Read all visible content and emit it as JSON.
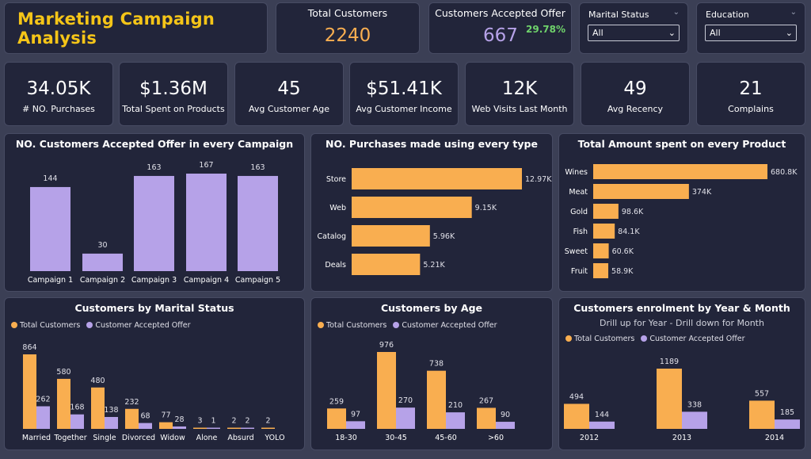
{
  "header": {
    "title": "Marketing Campaign Analysis"
  },
  "kpis_top": {
    "total_customers": {
      "label": "Total Customers",
      "value": "2240"
    },
    "accepted_offer": {
      "label": "Customers Accepted Offer",
      "value": "667",
      "pct": "29.78%"
    }
  },
  "slicers": {
    "marital": {
      "label": "Marital Status",
      "value": "All"
    },
    "education": {
      "label": "Education",
      "value": "All"
    }
  },
  "kpis": [
    {
      "value": "34.05K",
      "label": "# NO. Purchases"
    },
    {
      "value": "$1.36M",
      "label": "Total Spent on Products"
    },
    {
      "value": "45",
      "label": "Avg Customer Age"
    },
    {
      "value": "$51.41K",
      "label": "Avg Customer Income"
    },
    {
      "value": "12K",
      "label": "Web Visits Last Month"
    },
    {
      "value": "49",
      "label": "Avg Recency"
    },
    {
      "value": "21",
      "label": "Complains"
    }
  ],
  "colors": {
    "orange": "#f9ae50",
    "purple": "#b6a2e8",
    "title": "#f5c518",
    "green": "#6fd26b",
    "kpi_orange": "#f9ae50",
    "kpi_purple": "#b6a2e8"
  },
  "legend": {
    "total": "Total Customers",
    "accepted": "Customer Accepted Offer"
  },
  "chart_data": [
    {
      "id": "campaign",
      "type": "bar",
      "title": "NO. Customers Accepted Offer in every Campaign",
      "categories": [
        "Campaign 1",
        "Campaign 2",
        "Campaign 3",
        "Campaign 4",
        "Campaign 5"
      ],
      "values": [
        144,
        30,
        163,
        167,
        163
      ],
      "labels": [
        "144",
        "30",
        "163",
        "167",
        "163"
      ],
      "ylim": [
        0,
        167
      ]
    },
    {
      "id": "purchase_type",
      "type": "bar",
      "orientation": "horizontal",
      "title": "NO. Purchases made using every type",
      "categories": [
        "Store",
        "Web",
        "Catalog",
        "Deals"
      ],
      "values": [
        12970,
        9150,
        5960,
        5210
      ],
      "labels": [
        "12.97K",
        "9.15K",
        "5.96K",
        "5.21K"
      ]
    },
    {
      "id": "product",
      "type": "bar",
      "orientation": "horizontal",
      "title": "Total Amount spent on every Product",
      "categories": [
        "Wines",
        "Meat",
        "Gold",
        "Fish",
        "Sweet",
        "Fruit"
      ],
      "values": [
        680800,
        374000,
        98600,
        84100,
        60600,
        58900
      ],
      "labels": [
        "680.8K",
        "374K",
        "98.6K",
        "84.1K",
        "60.6K",
        "58.9K"
      ]
    },
    {
      "id": "marital",
      "type": "bar",
      "title": "Customers by Marital Status",
      "categories": [
        "Married",
        "Together",
        "Single",
        "Divorced",
        "Widow",
        "Alone",
        "Absurd",
        "YOLO"
      ],
      "series": [
        {
          "name": "Total Customers",
          "values": [
            864,
            580,
            480,
            232,
            77,
            3,
            2,
            2
          ]
        },
        {
          "name": "Customer Accepted Offer",
          "values": [
            262,
            168,
            138,
            68,
            28,
            1,
            2,
            null
          ]
        }
      ]
    },
    {
      "id": "age",
      "type": "bar",
      "title": "Customers by Age",
      "categories": [
        "18-30",
        "30-45",
        "45-60",
        ">60"
      ],
      "series": [
        {
          "name": "Total Customers",
          "values": [
            259,
            976,
            738,
            267
          ]
        },
        {
          "name": "Customer Accepted Offer",
          "values": [
            97,
            270,
            210,
            90
          ]
        }
      ]
    },
    {
      "id": "enrolment",
      "type": "bar",
      "title": "Customers enrolment by Year & Month",
      "subtitle": "Drill up for Year - Drill down for Month",
      "categories": [
        "2012",
        "2013",
        "2014"
      ],
      "series": [
        {
          "name": "Total Customers",
          "values": [
            494,
            1189,
            557
          ]
        },
        {
          "name": "Customer Accepted Offer",
          "values": [
            144,
            338,
            185
          ]
        }
      ]
    }
  ]
}
